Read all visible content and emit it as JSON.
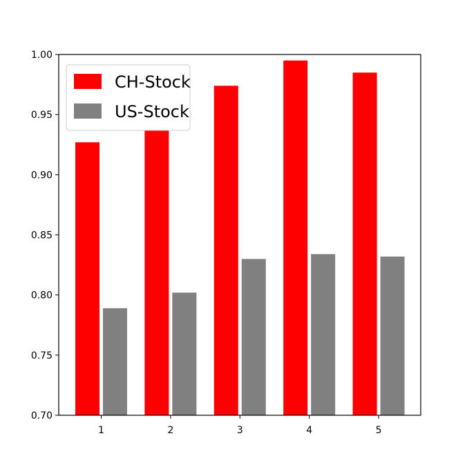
{
  "chart_data": {
    "type": "bar",
    "title": "",
    "xlabel": "",
    "ylabel": "",
    "categories": [
      "1",
      "2",
      "3",
      "4",
      "5"
    ],
    "series": [
      {
        "name": "CH-Stock",
        "color": "#ff0000",
        "values": [
          0.927,
          0.937,
          0.974,
          0.995,
          0.985
        ]
      },
      {
        "name": "US-Stock",
        "color": "#808080",
        "values": [
          0.789,
          0.802,
          0.83,
          0.834,
          0.832
        ]
      }
    ],
    "ylim": [
      0.7,
      1.0
    ],
    "yticks": [
      "0.70",
      "0.75",
      "0.80",
      "0.85",
      "0.90",
      "0.95",
      "1.00"
    ],
    "grid": false,
    "legend_position": "top-left"
  }
}
